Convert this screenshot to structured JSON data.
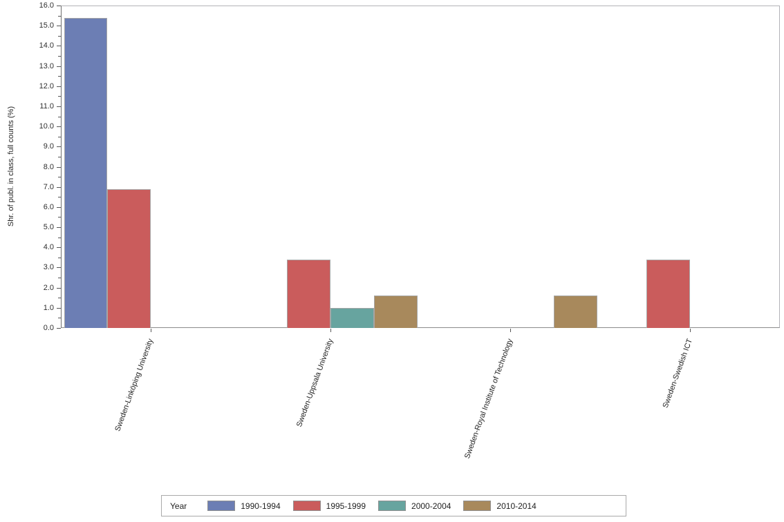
{
  "chart_data": {
    "type": "bar",
    "title": "",
    "xlabel": "",
    "ylabel": "Shr. of publ. in class, full counts (%)",
    "ylim": [
      0,
      16
    ],
    "ytick_step": 1.0,
    "yminor_step": 0.5,
    "ytick_format": "one-decimal",
    "grid": false,
    "categories": [
      "Sweden-Linköping University",
      "Sweden-Uppsala University",
      "Sweden-Royal Institute of Technology",
      "Sweden-Swedish ICT"
    ],
    "legend_title": "Year",
    "legend_position": "bottom",
    "series": [
      {
        "name": "1990-1994",
        "color": "#6c7eb4",
        "values": [
          15.4,
          null,
          null,
          null
        ]
      },
      {
        "name": "1995-1999",
        "color": "#ca5c5c",
        "values": [
          6.9,
          3.4,
          null,
          3.4
        ]
      },
      {
        "name": "2000-2004",
        "color": "#67a49f",
        "values": [
          null,
          1.0,
          null,
          null
        ]
      },
      {
        "name": "2010-2014",
        "color": "#a8895c",
        "values": [
          null,
          1.6,
          1.6,
          null
        ]
      }
    ],
    "bar_outline_color": "#a6a6a6",
    "axis_color": "#6f6f6f",
    "frame_color": "#b2b2b7"
  }
}
